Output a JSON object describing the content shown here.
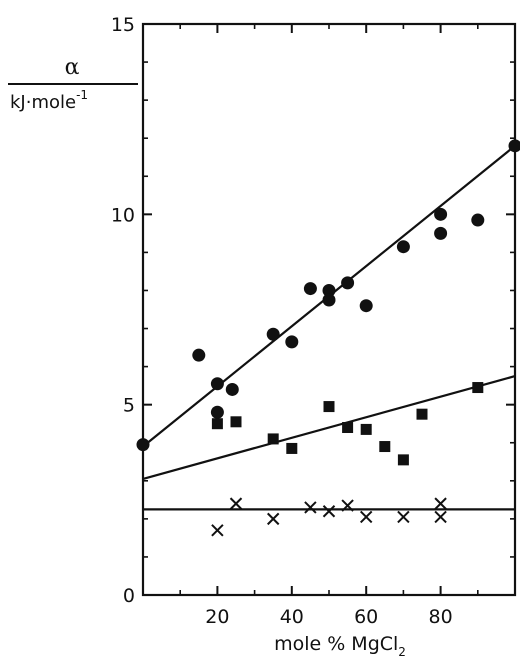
{
  "chart_data": {
    "type": "scatter",
    "xlabel": "mole % MgCl",
    "xlabel_subscript": "2",
    "ylabel": "α",
    "ylabel_unit": "kJ·mole",
    "ylabel_unit_exponent": "-1",
    "xlim": [
      0,
      100
    ],
    "ylim": [
      0,
      15
    ],
    "xticks": [
      20,
      40,
      60,
      80
    ],
    "xticks_minor": [
      10,
      30,
      50,
      70,
      90
    ],
    "yticks": [
      0,
      5,
      10,
      15
    ],
    "yticks_minor": [
      1,
      2,
      3,
      4,
      6,
      7,
      8,
      9,
      11,
      12,
      13,
      14
    ],
    "grid": false,
    "series": [
      {
        "marker": "circle",
        "points": [
          [
            0,
            3.95
          ],
          [
            15,
            6.3
          ],
          [
            20,
            5.55
          ],
          [
            20,
            4.8
          ],
          [
            24,
            5.4
          ],
          [
            35,
            6.85
          ],
          [
            40,
            6.65
          ],
          [
            45,
            8.05
          ],
          [
            50,
            8.0
          ],
          [
            50,
            7.75
          ],
          [
            55,
            8.2
          ],
          [
            60,
            7.6
          ],
          [
            70,
            9.15
          ],
          [
            80,
            10.0
          ],
          [
            80,
            9.5
          ],
          [
            90,
            9.85
          ],
          [
            100,
            11.8
          ]
        ],
        "fit": {
          "x0": 0,
          "y0": 3.9,
          "x1": 100,
          "y1": 11.8
        }
      },
      {
        "marker": "square",
        "points": [
          [
            20,
            4.5
          ],
          [
            25,
            4.55
          ],
          [
            35,
            4.1
          ],
          [
            40,
            3.85
          ],
          [
            50,
            4.95
          ],
          [
            55,
            4.4
          ],
          [
            60,
            4.35
          ],
          [
            65,
            3.9
          ],
          [
            70,
            3.55
          ],
          [
            75,
            4.75
          ],
          [
            90,
            5.45
          ]
        ],
        "fit": {
          "x0": 0,
          "y0": 3.05,
          "x1": 100,
          "y1": 5.75
        }
      },
      {
        "marker": "cross",
        "points": [
          [
            20,
            1.7
          ],
          [
            25,
            2.4
          ],
          [
            35,
            2.0
          ],
          [
            45,
            2.3
          ],
          [
            50,
            2.2
          ],
          [
            55,
            2.35
          ],
          [
            60,
            2.05
          ],
          [
            70,
            2.05
          ],
          [
            80,
            2.4
          ],
          [
            80,
            2.05
          ]
        ],
        "fit": {
          "x0": 0,
          "y0": 2.25,
          "x1": 100,
          "y1": 2.25
        }
      }
    ]
  }
}
